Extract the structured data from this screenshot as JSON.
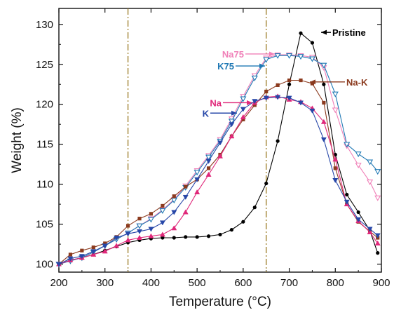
{
  "chart_data": {
    "type": "line",
    "xlabel": "Temperature (°C)",
    "ylabel": "Weight (%)",
    "xlim": [
      200,
      900
    ],
    "ylim": [
      99,
      132
    ],
    "xticks": [
      200,
      300,
      400,
      500,
      600,
      700,
      800,
      900
    ],
    "yticks": [
      100,
      105,
      110,
      115,
      120,
      125,
      130
    ],
    "vlines": [
      {
        "x": 350,
        "color": "#9a7a22"
      },
      {
        "x": 650,
        "color": "#9a7a22"
      }
    ],
    "series": [
      {
        "name": "Pristine",
        "color": "#000000",
        "marker": "circle",
        "x": [
          200,
          225,
          250,
          275,
          300,
          325,
          350,
          375,
          400,
          425,
          450,
          475,
          500,
          525,
          550,
          575,
          600,
          625,
          650,
          675,
          700,
          725,
          750,
          775,
          800,
          825,
          850,
          875,
          892
        ],
        "y": [
          100,
          100.5,
          100.8,
          101.2,
          101.7,
          102.2,
          102.7,
          103,
          103.2,
          103.3,
          103.3,
          103.4,
          103.4,
          103.5,
          103.7,
          104.3,
          105.3,
          107.1,
          110.1,
          115.4,
          122.5,
          128.9,
          127.7,
          122.5,
          113.7,
          108.7,
          106.5,
          104.2,
          101.4
        ],
        "label_y": 129
      },
      {
        "name": "Na75",
        "color": "#f080b8",
        "marker": "triangle-down-open",
        "x": [
          200,
          225,
          250,
          275,
          300,
          325,
          350,
          375,
          400,
          425,
          450,
          475,
          500,
          525,
          550,
          575,
          600,
          625,
          650,
          675,
          700,
          725,
          750,
          775,
          800,
          825,
          850,
          875,
          892
        ],
        "y": [
          100,
          100.4,
          100.8,
          101.5,
          102.3,
          103.1,
          103.9,
          104.8,
          105.7,
          106.8,
          108.1,
          109.8,
          111.7,
          113.6,
          115.6,
          118.2,
          121,
          123.6,
          125.8,
          126.2,
          126.2,
          126.1,
          125.9,
          124.6,
          119.3,
          114.8,
          112.4,
          110.3,
          108.3
        ],
        "label_y": 126.3
      },
      {
        "name": "K75",
        "color": "#1f78b4",
        "marker": "triangle-down-open",
        "x": [
          200,
          225,
          250,
          275,
          300,
          325,
          350,
          375,
          400,
          425,
          450,
          475,
          500,
          525,
          550,
          575,
          600,
          625,
          650,
          675,
          700,
          725,
          750,
          775,
          800,
          825,
          850,
          875,
          892
        ],
        "y": [
          100,
          100.4,
          100.8,
          101.5,
          102.3,
          103.1,
          103.9,
          104.8,
          105.6,
          106.7,
          108,
          109.6,
          111.5,
          113.4,
          115.4,
          117.9,
          120.7,
          123.3,
          125.6,
          126.1,
          126.1,
          126,
          125.7,
          124.9,
          121.3,
          115,
          113.8,
          112.8,
          111.6
        ],
        "label_y": 124.8
      },
      {
        "name": "Na-K",
        "color": "#8b3a1e",
        "marker": "square",
        "x": [
          200,
          225,
          250,
          275,
          300,
          325,
          350,
          375,
          400,
          425,
          450,
          475,
          500,
          525,
          550,
          575,
          600,
          625,
          650,
          675,
          700,
          725,
          750,
          775,
          800,
          825,
          850,
          875,
          892
        ],
        "y": [
          100,
          101.2,
          101.7,
          102.1,
          102.6,
          103.4,
          104.8,
          105.7,
          106.3,
          107.3,
          108.5,
          109.7,
          110.6,
          112,
          113.7,
          116,
          118.1,
          119.9,
          121.6,
          122.4,
          123,
          123,
          122.6,
          120.2,
          112,
          107.5,
          105.3,
          104.1,
          103.3
        ],
        "label_y": 122.8
      },
      {
        "name": "Na",
        "color": "#e0287a",
        "marker": "triangle-up",
        "x": [
          200,
          225,
          250,
          275,
          300,
          325,
          350,
          375,
          400,
          425,
          450,
          475,
          500,
          525,
          550,
          575,
          600,
          625,
          650,
          675,
          700,
          725,
          750,
          775,
          800,
          825,
          850,
          875,
          892
        ],
        "y": [
          100,
          100.5,
          100.8,
          101.2,
          101.6,
          102.3,
          103,
          103.3,
          103.5,
          103.7,
          104.5,
          106.5,
          109,
          111.2,
          113.5,
          116,
          118.4,
          120.2,
          120.9,
          121,
          120.6,
          120.3,
          119.5,
          117.8,
          113.1,
          107.5,
          105.4,
          104,
          102.6
        ],
        "label_y": 120.2
      },
      {
        "name": "K",
        "color": "#2747a8",
        "marker": "triangle-down",
        "x": [
          200,
          225,
          250,
          275,
          300,
          325,
          350,
          375,
          400,
          425,
          450,
          475,
          500,
          525,
          550,
          575,
          600,
          625,
          650,
          675,
          700,
          725,
          750,
          775,
          800,
          825,
          850,
          875,
          892
        ],
        "y": [
          100,
          100.7,
          101,
          101.6,
          102.3,
          103.3,
          103.8,
          104.1,
          104.4,
          105.2,
          106.5,
          108.4,
          110.6,
          112.9,
          115.2,
          117.5,
          119.4,
          120.4,
          120.8,
          120.9,
          120.8,
          120.2,
          119.2,
          115.6,
          110.5,
          107.8,
          105.6,
          104.4,
          103.6
        ],
        "label_y": 118.9
      }
    ]
  }
}
